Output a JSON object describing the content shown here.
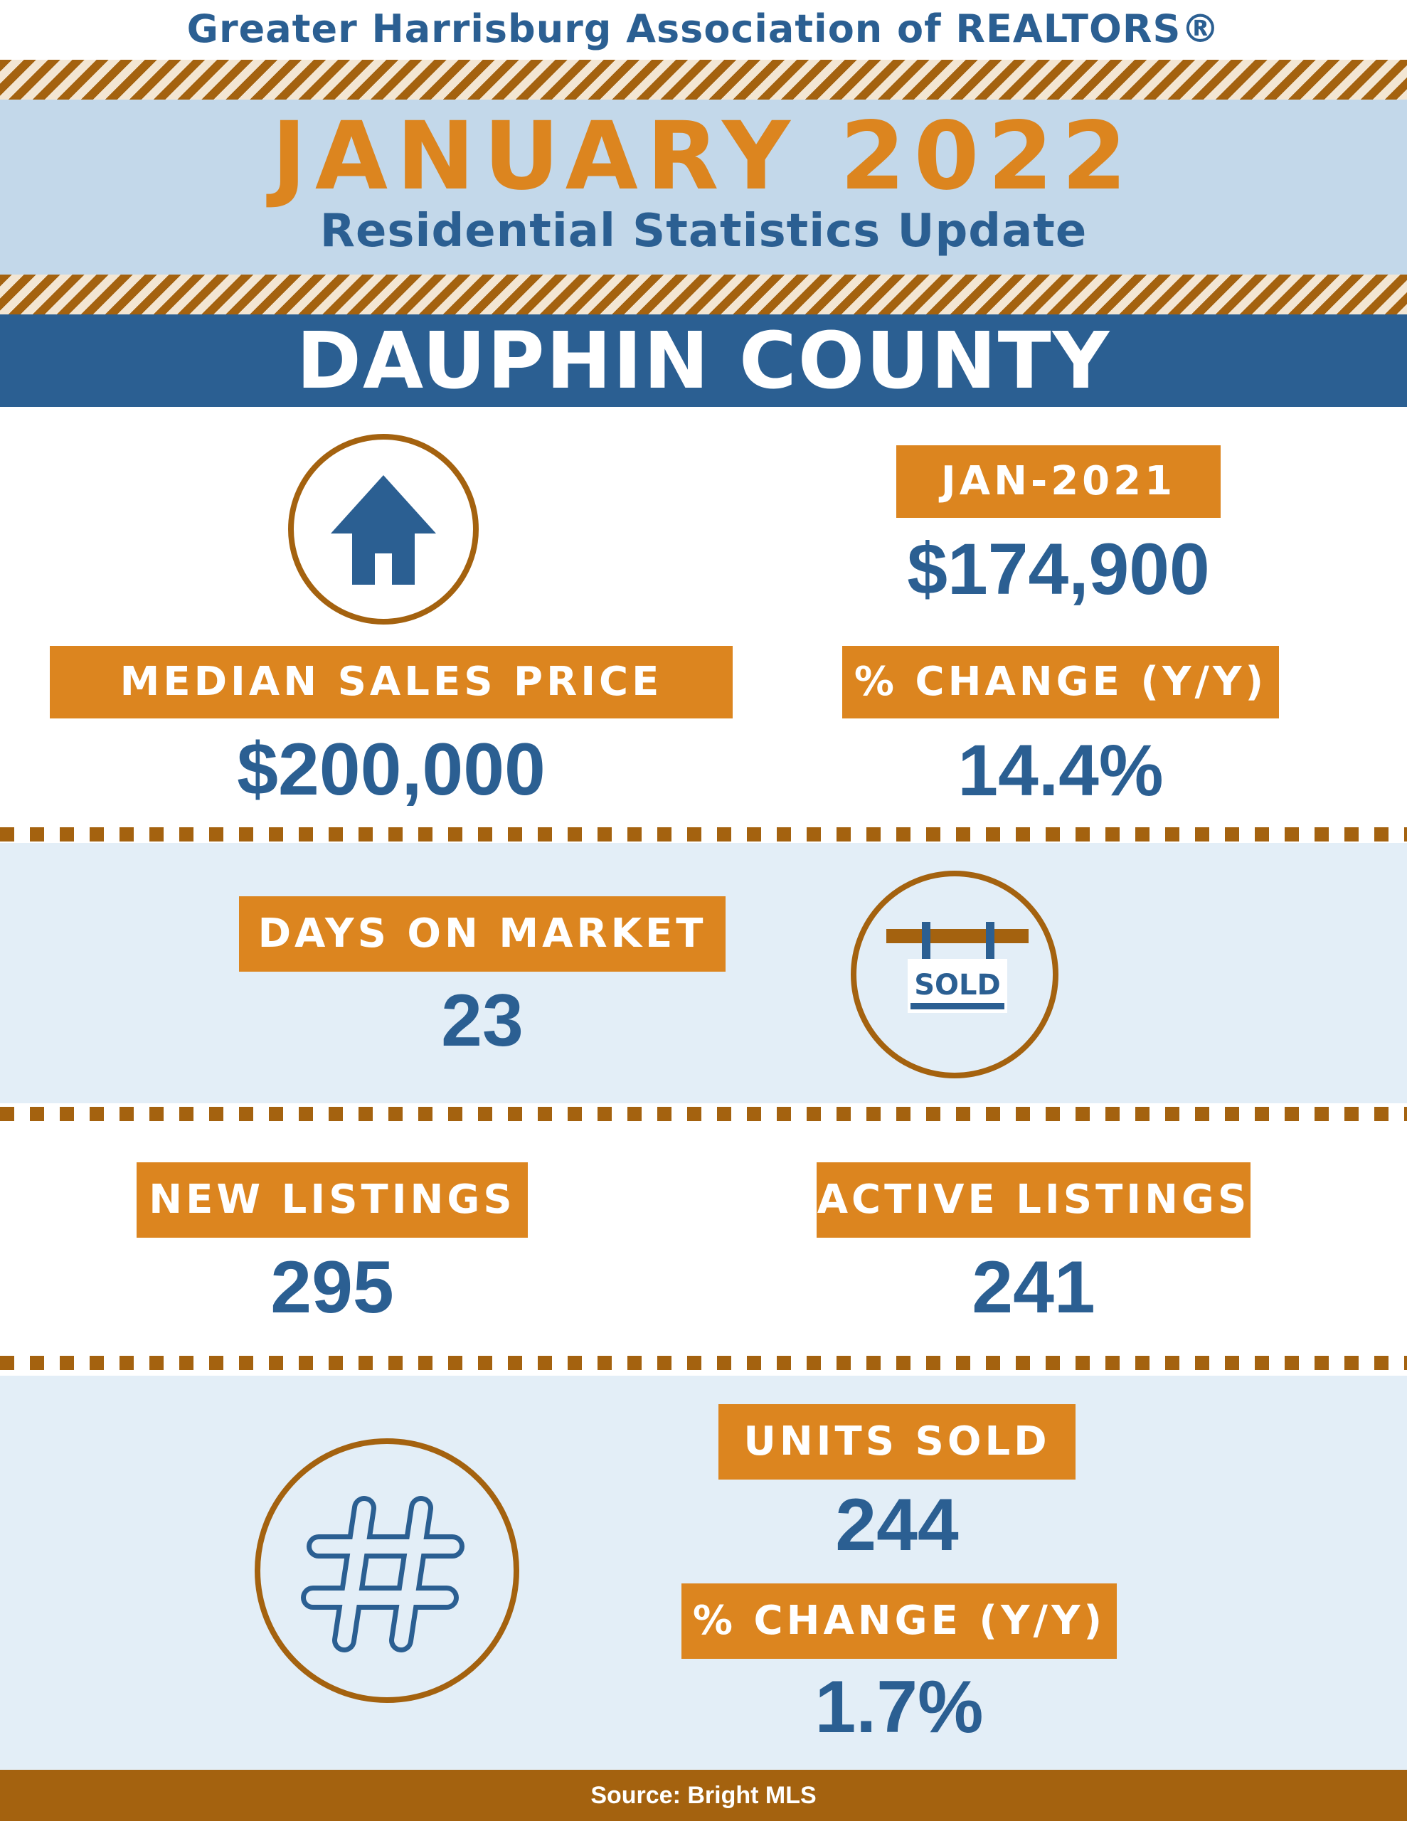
{
  "header": {
    "organization": "Greater Harrisburg Association of REALTORS®",
    "month_year": "JANUARY 2022",
    "subtitle": "Residential Statistics Update",
    "county": "DAUPHIN COUNTY"
  },
  "median_price": {
    "label": "MEDIAN SALES PRICE",
    "value": "$200,000",
    "prior_label": "JAN-2021",
    "prior_value": "$174,900",
    "change_label": "% CHANGE (Y/Y)",
    "change_value": "14.4%"
  },
  "days_on_market": {
    "label": "DAYS ON MARKET",
    "value": "23"
  },
  "sold_sign": {
    "text": "SOLD"
  },
  "new_listings": {
    "label": "NEW LISTINGS",
    "value": "295"
  },
  "active_listings": {
    "label": "ACTIVE LISTINGS",
    "value": "241"
  },
  "units_sold": {
    "label": "UNITS SOLD",
    "value": "244",
    "change_label": "% CHANGE (Y/Y)",
    "change_value": "1.7%"
  },
  "footer": {
    "source": "Source: Bright MLS"
  },
  "colors": {
    "blue": "#2b5f92",
    "orange": "#dc851f",
    "brown": "#a4620f",
    "light_blue": "#c3d8ea",
    "pale_blue": "#e3eef7"
  },
  "icons": [
    "house-icon",
    "sold-sign-icon",
    "hashtag-icon"
  ]
}
